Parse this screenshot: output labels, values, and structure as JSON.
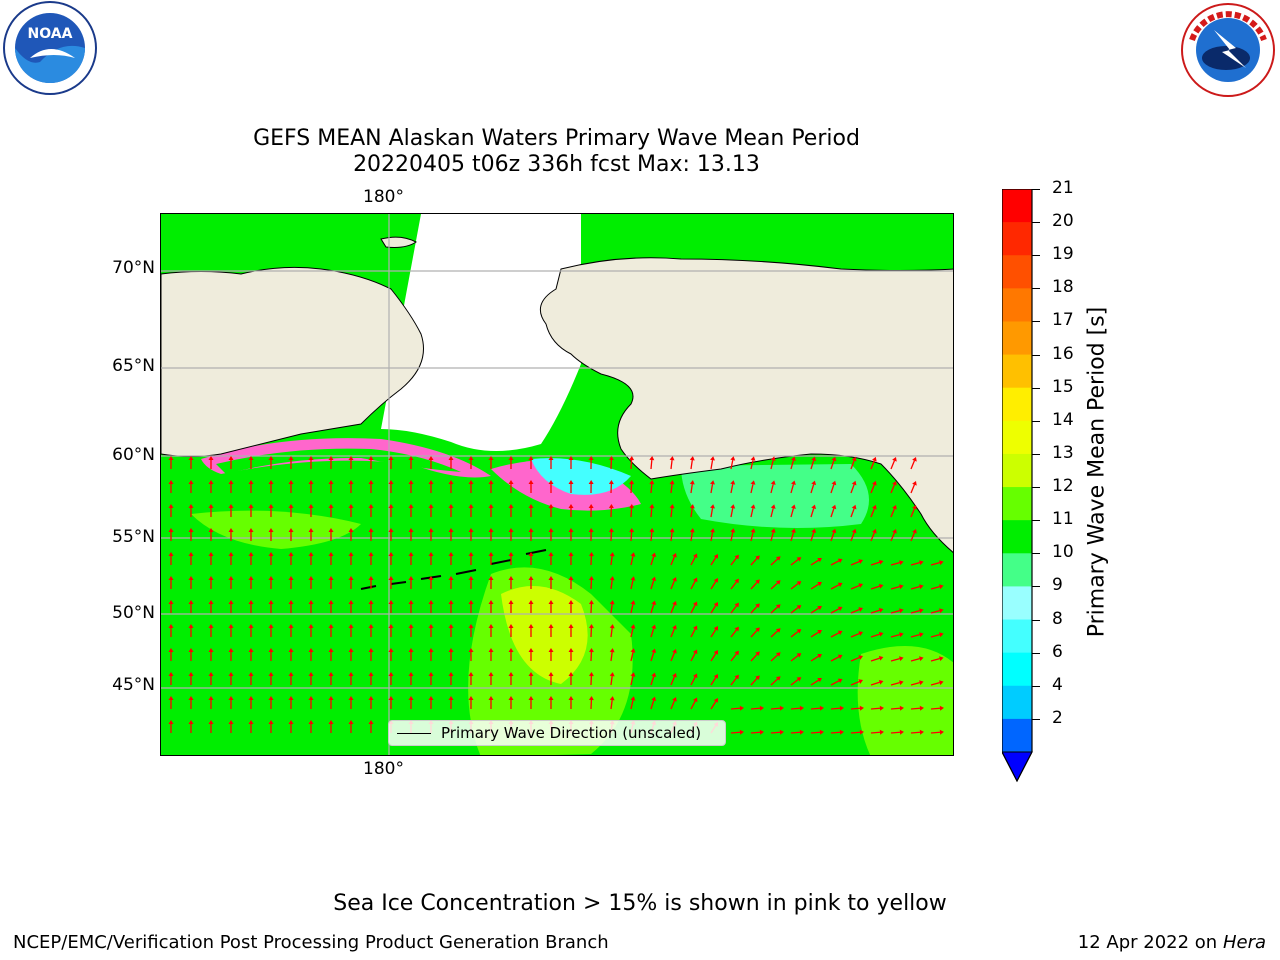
{
  "header": {
    "left_logo": "noaa-logo",
    "right_logo": "nws-logo",
    "noaa_logo_text": "NOAA",
    "noaa_ring_text": "NATIONAL OCEANIC AND ATMOSPHERIC ADMINISTRATION · U.S. DEPARTMENT OF COMMERCE",
    "nws_ring_text": "NATIONAL WEATHER SERVICE"
  },
  "title": {
    "line1": "GEFS MEAN Alaskan Waters Primary Wave Mean Period",
    "line2": "20220405 t06z 336h fcst   Max: 13.13"
  },
  "map": {
    "lon_labels": [
      "180°",
      "180°"
    ],
    "lat_labels": [
      "70°N",
      "65°N",
      "60°N",
      "55°N",
      "50°N",
      "45°N"
    ],
    "legend_label": "Primary Wave Direction (unscaled)",
    "colors": {
      "land": "#efecdc",
      "ocean_main": "#00ee00",
      "ocean_light": "#66ff00",
      "ocean_yellow": "#ccff00",
      "ocean_aqua": "#44ff88",
      "ice_pink": "#ff66cc",
      "ice_orange": "#ffb060",
      "ice_magenta": "#ff33ff",
      "cyan": "#44ffff",
      "arrow": "#ff0000",
      "grid": "#b0b0b0"
    }
  },
  "colorbar": {
    "label": "Primary Wave Mean Period [s]",
    "ticks": [
      "21",
      "20",
      "19",
      "18",
      "17",
      "16",
      "15",
      "14",
      "13",
      "12",
      "11",
      "10",
      "9",
      "8",
      "6",
      "4",
      "2"
    ],
    "colors": [
      "#ff0000",
      "#ff2800",
      "#ff5000",
      "#ff7800",
      "#ff9900",
      "#ffc000",
      "#ffee00",
      "#eeff00",
      "#ccff00",
      "#66ff00",
      "#00ee00",
      "#44ff88",
      "#99ffff",
      "#44ffff",
      "#00ffff",
      "#00ccff",
      "#0066ff"
    ],
    "extend_color": "#0000ff"
  },
  "caption": "Sea Ice Concentration > 15% is shown in pink to yellow",
  "footer": {
    "left": "NCEP/EMC/Verification Post Processing Product Generation Branch",
    "right_date": "12 Apr 2022 on ",
    "right_host": "Hera"
  }
}
